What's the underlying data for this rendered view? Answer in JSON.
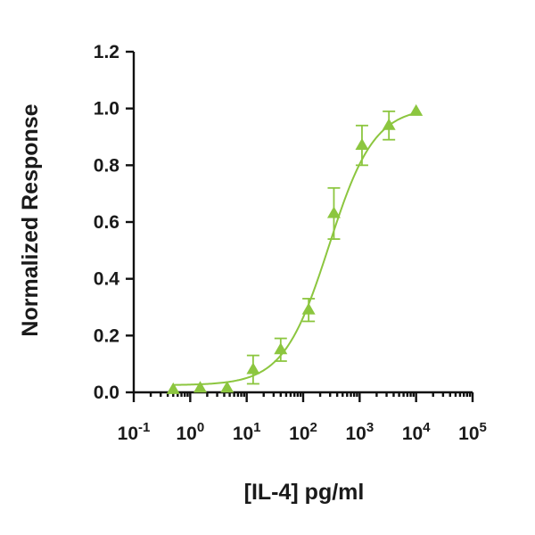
{
  "chart_data": {
    "type": "scatter",
    "title": "",
    "xlabel": "[IL-4] pg/ml",
    "ylabel": "Normalized Response",
    "x_scale": "log10",
    "xlim": [
      0.1,
      100000
    ],
    "ylim": [
      0,
      1.2
    ],
    "grid": false,
    "legend": "none",
    "colors": {
      "series": "#8cc63f",
      "axes": "#111111"
    },
    "x_ticks": [
      {
        "base": "10",
        "exp": "-1",
        "value": 0.1
      },
      {
        "base": "10",
        "exp": "0",
        "value": 1
      },
      {
        "base": "10",
        "exp": "1",
        "value": 10
      },
      {
        "base": "10",
        "exp": "2",
        "value": 100
      },
      {
        "base": "10",
        "exp": "3",
        "value": 1000
      },
      {
        "base": "10",
        "exp": "4",
        "value": 10000
      },
      {
        "base": "10",
        "exp": "5",
        "value": 100000
      }
    ],
    "y_ticks": [
      "0.0",
      "0.2",
      "0.4",
      "0.6",
      "0.8",
      "1.0",
      "1.2"
    ],
    "series": [
      {
        "marker": "triangle",
        "fit": "four-parameter logistic",
        "points": [
          {
            "x": 0.5,
            "y": 0.01,
            "err": 0.005
          },
          {
            "x": 1.5,
            "y": 0.015,
            "err": 0.005
          },
          {
            "x": 4.5,
            "y": 0.015,
            "err": 0.005
          },
          {
            "x": 13,
            "y": 0.08,
            "err": 0.05
          },
          {
            "x": 40,
            "y": 0.15,
            "err": 0.04
          },
          {
            "x": 125,
            "y": 0.29,
            "err": 0.04
          },
          {
            "x": 350,
            "y": 0.63,
            "err": 0.09
          },
          {
            "x": 1100,
            "y": 0.87,
            "err": 0.07
          },
          {
            "x": 3300,
            "y": 0.94,
            "err": 0.05
          },
          {
            "x": 10000,
            "y": 0.99,
            "err": 0.0
          }
        ],
        "fit_params": {
          "bottom": 0.025,
          "top": 1.005,
          "ec50": 285,
          "hill": 1.08
        }
      }
    ]
  }
}
